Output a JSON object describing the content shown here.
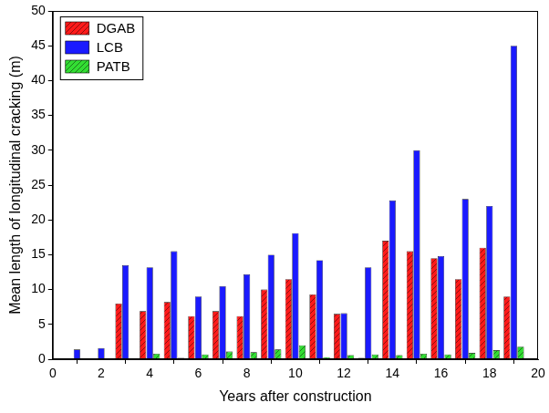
{
  "chart_data": {
    "type": "bar",
    "x_label": "Years after construction",
    "y_label": "Mean length of longitudinal cracking (m)",
    "x": [
      1,
      2,
      3,
      4,
      5,
      6,
      7,
      8,
      9,
      10,
      11,
      12,
      13,
      14,
      15,
      16,
      17,
      18,
      19
    ],
    "series": [
      {
        "name": "DGAB",
        "color": "#ff1a1a",
        "values": [
          0,
          0,
          8,
          6.9,
          8.2,
          6.2,
          6.9,
          6.2,
          10,
          11.5,
          9.3,
          6.5,
          0.2,
          17,
          15.5,
          14.5,
          11.5,
          16,
          9
        ]
      },
      {
        "name": "LCB",
        "color": "#1a1aff",
        "values": [
          1.4,
          1.6,
          13.5,
          13.2,
          15.5,
          9,
          10.5,
          12.2,
          15,
          18.1,
          14.2,
          6.6,
          13.2,
          22.8,
          30,
          14.8,
          23,
          22,
          45
        ]
      },
      {
        "name": "PATB",
        "color": "#33dd33",
        "values": [
          0,
          0,
          0,
          0.8,
          0.2,
          0.7,
          1.1,
          1.0,
          1.4,
          2.0,
          0.3,
          0.6,
          0.7,
          0.6,
          0.8,
          0.7,
          0.9,
          1.3,
          1.8
        ]
      }
    ],
    "xlim": [
      0,
      20
    ],
    "xticks": [
      0,
      2,
      4,
      6,
      8,
      10,
      12,
      14,
      16,
      18,
      20
    ],
    "ylim": [
      0,
      50
    ],
    "yticks": [
      0,
      5,
      10,
      15,
      20,
      25,
      30,
      35,
      40,
      45,
      50
    ],
    "grid": false,
    "legend": "upper left"
  }
}
